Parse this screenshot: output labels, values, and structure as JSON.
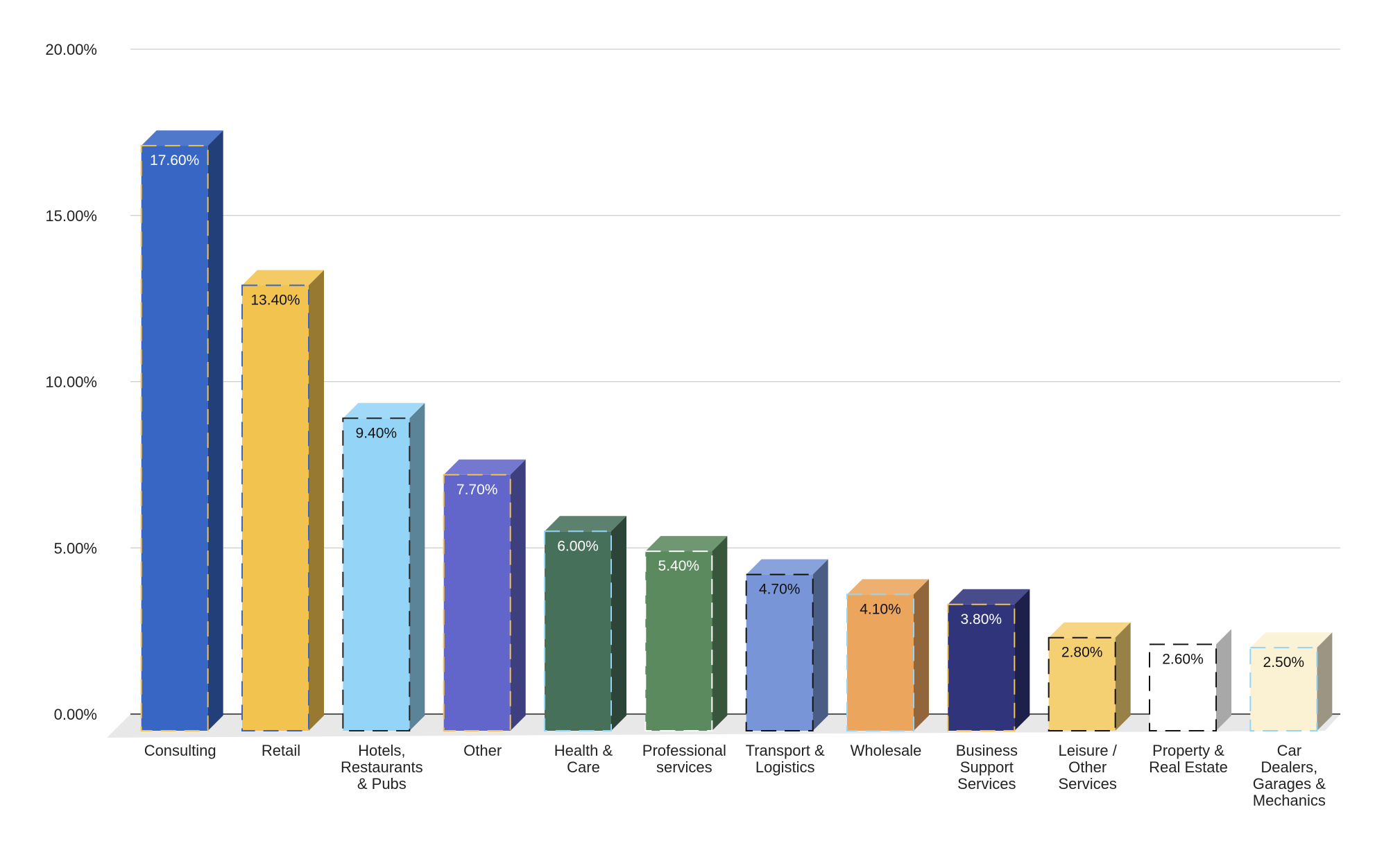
{
  "chart_data": {
    "type": "bar",
    "title": "",
    "xlabel": "",
    "ylabel": "",
    "ylim": [
      0,
      20
    ],
    "yticks": [
      "0.00%",
      "5.00%",
      "10.00%",
      "15.00%",
      "20.00%"
    ],
    "grid": true,
    "legend": "none",
    "categories": [
      "Consulting",
      "Retail",
      "Hotels, Restaurants & Pubs",
      "Other",
      "Health & Care",
      "Professional services",
      "Transport & Logistics",
      "Wholesale",
      "Business Support Services",
      "Leisure / Other Services",
      "Property & Real Estate",
      "Car Dealers, Garages & Mechanics"
    ],
    "category_lines": [
      [
        "Consulting"
      ],
      [
        "Retail"
      ],
      [
        "Hotels,",
        "Restaurants",
        "& Pubs"
      ],
      [
        "Other"
      ],
      [
        "Health &",
        "Care"
      ],
      [
        "Professional",
        "services"
      ],
      [
        "Transport &",
        "Logistics"
      ],
      [
        "Wholesale"
      ],
      [
        "Business",
        "Support",
        "Services"
      ],
      [
        "Leisure /",
        "Other",
        "Services"
      ],
      [
        "Property &",
        "Real Estate"
      ],
      [
        "Car",
        "Dealers,",
        "Garages &",
        "Mechanics"
      ]
    ],
    "values": [
      17.6,
      13.4,
      9.4,
      7.7,
      6.0,
      5.4,
      4.7,
      4.1,
      3.8,
      2.8,
      2.6,
      2.5
    ],
    "value_labels": [
      "17.60%",
      "13.40%",
      "9.40%",
      "7.70%",
      "6.00%",
      "5.40%",
      "4.70%",
      "4.10%",
      "3.80%",
      "2.80%",
      "2.60%",
      "2.50%"
    ],
    "colors": [
      "#3766c4",
      "#f3c350",
      "#94d5f7",
      "#6266cb",
      "#47705b",
      "#5b8a5f",
      "#7896d7",
      "#eba55d",
      "#30347b",
      "#f5d073",
      "#ffffff",
      "#fbf1d3"
    ],
    "border_colors": [
      "#f3c350",
      "#3766c4",
      "#222222",
      "#f3c350",
      "#94d5f7",
      "#ffffff",
      "#111111",
      "#94d5f7",
      "#f3c350",
      "#111111",
      "#111111",
      "#94d5f7"
    ],
    "label_colors": [
      "#ffffff",
      "#111111",
      "#111111",
      "#ffffff",
      "#ffffff",
      "#ffffff",
      "#111111",
      "#111111",
      "#ffffff",
      "#111111",
      "#111111",
      "#111111"
    ]
  }
}
